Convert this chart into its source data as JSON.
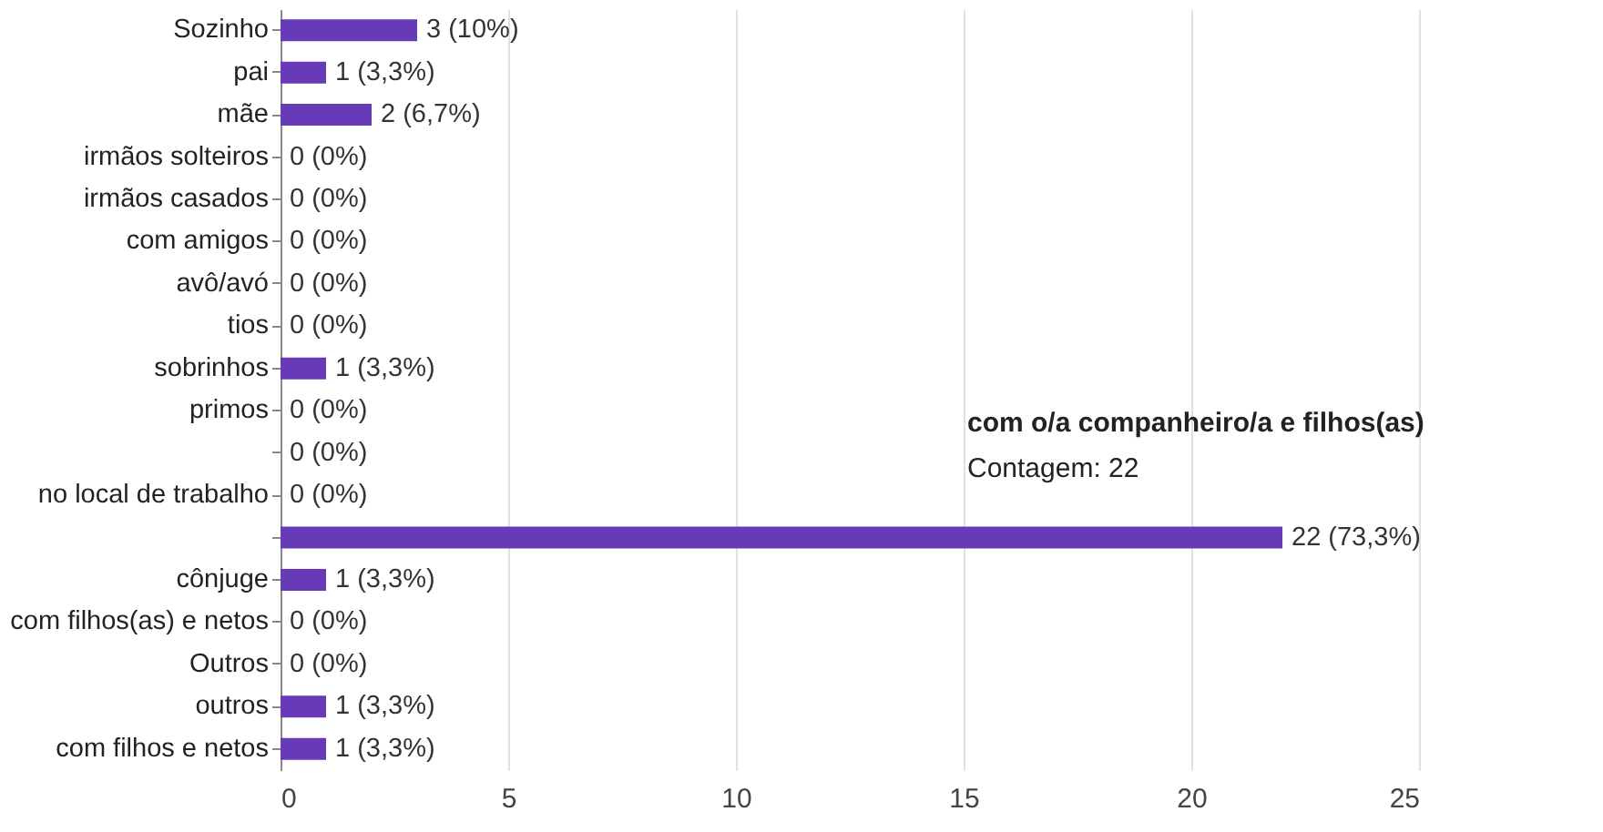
{
  "chart_data": {
    "type": "bar",
    "orientation": "horizontal",
    "categories": [
      "Sozinho",
      "pai",
      "mãe",
      "irmãos solteiros",
      "irmãos casados",
      "com amigos",
      "avô/avó",
      "tios",
      "sobrinhos",
      "primos",
      null,
      "no local de trabalho",
      null,
      "cônjuge",
      "com filhos(as) e netos",
      "Outros",
      "outros",
      "com filhos e netos"
    ],
    "values": [
      3,
      1,
      2,
      0,
      0,
      0,
      0,
      0,
      1,
      0,
      0,
      0,
      22,
      1,
      0,
      0,
      1,
      1
    ],
    "value_labels": [
      "3 (10%)",
      "1 (3,3%)",
      "2 (6,7%)",
      "0 (0%)",
      "0 (0%)",
      "0 (0%)",
      "0 (0%)",
      "0 (0%)",
      "1 (3,3%)",
      "0 (0%)",
      "0 (0%)",
      "0 (0%)",
      "22 (73,3%)",
      "1 (3,3%)",
      "0 (0%)",
      "0 (0%)",
      "1 (3,3%)",
      "1 (3,3%)"
    ],
    "color": "#673ab7",
    "xlim": [
      0,
      25
    ],
    "xticks": [
      0,
      5,
      10,
      15,
      20,
      25
    ],
    "grid": "x",
    "annotations": [
      "com o/a companheiro/a e filhos(as)",
      "Contagem: 22"
    ]
  }
}
